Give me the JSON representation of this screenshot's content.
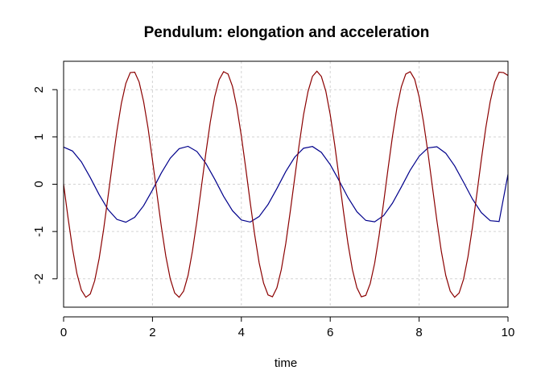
{
  "chart_data": {
    "type": "line",
    "title": "Pendulum: elongation and acceleration",
    "xlabel": "time",
    "ylabel": "",
    "xlim": [
      0,
      10
    ],
    "ylim": [
      -2.6,
      2.6
    ],
    "x_ticks": [
      0,
      2,
      4,
      6,
      8,
      10
    ],
    "y_ticks": [
      -2,
      -1,
      0,
      1,
      2
    ],
    "x_tick_labels": [
      "0",
      "2",
      "4",
      "6",
      "8",
      "10"
    ],
    "y_tick_labels": [
      "-2",
      "-1",
      "0",
      "1",
      "2"
    ],
    "grid": true,
    "legend": "none",
    "series": [
      {
        "color": "#00008b",
        "x": [
          0,
          0.2,
          0.4,
          0.6,
          0.8,
          1.0,
          1.2,
          1.4,
          1.6,
          1.8,
          2.0,
          2.2,
          2.4,
          2.6,
          2.8,
          3.0,
          3.2,
          3.4,
          3.6,
          3.8,
          4.0,
          4.2,
          4.4,
          4.6,
          4.8,
          5.0,
          5.2,
          5.4,
          5.6,
          5.8,
          6.0,
          6.2,
          6.4,
          6.6,
          6.8,
          7.0,
          7.2,
          7.4,
          7.6,
          7.8,
          8.0,
          8.2,
          8.4,
          8.6,
          8.8,
          9.0,
          9.2,
          9.4,
          9.6,
          9.8,
          10.0
        ],
        "values": [
          0.785,
          0.703,
          0.473,
          0.142,
          -0.22,
          -0.535,
          -0.744,
          -0.803,
          -0.699,
          -0.455,
          -0.122,
          0.24,
          0.55,
          0.751,
          0.802,
          0.692,
          0.443,
          0.107,
          -0.254,
          -0.56,
          -0.756,
          -0.8,
          -0.683,
          -0.429,
          -0.091,
          0.269,
          0.571,
          0.761,
          0.798,
          0.674,
          0.415,
          0.075,
          -0.283,
          -0.581,
          -0.765,
          -0.795,
          -0.665,
          -0.401,
          -0.059,
          0.298,
          0.591,
          0.768,
          0.792,
          0.655,
          0.387,
          0.043,
          -0.313,
          -0.6,
          -0.771,
          -0.788,
          0.21
        ]
      },
      {
        "color": "#8b0000",
        "x": [
          0,
          0.1,
          0.2,
          0.3,
          0.4,
          0.5,
          0.6,
          0.7,
          0.8,
          0.9,
          1.0,
          1.1,
          1.2,
          1.3,
          1.4,
          1.5,
          1.6,
          1.7,
          1.8,
          1.9,
          2.0,
          2.1,
          2.2,
          2.3,
          2.4,
          2.5,
          2.6,
          2.7,
          2.8,
          2.9,
          3.0,
          3.1,
          3.2,
          3.3,
          3.4,
          3.5,
          3.6,
          3.7,
          3.8,
          3.9,
          4.0,
          4.1,
          4.2,
          4.3,
          4.4,
          4.5,
          4.6,
          4.7,
          4.8,
          4.9,
          5.0,
          5.1,
          5.2,
          5.3,
          5.4,
          5.5,
          5.6,
          5.7,
          5.8,
          5.9,
          6.0,
          6.1,
          6.2,
          6.3,
          6.4,
          6.5,
          6.6,
          6.7,
          6.8,
          6.9,
          7.0,
          7.1,
          7.2,
          7.3,
          7.4,
          7.5,
          7.6,
          7.7,
          7.8,
          7.9,
          8.0,
          8.1,
          8.2,
          8.3,
          8.4,
          8.5,
          8.6,
          8.7,
          8.8,
          8.9,
          9.0,
          9.1,
          9.2,
          9.3,
          9.4,
          9.5,
          9.6,
          9.7,
          9.8,
          9.9,
          10.0
        ],
        "values": [
          0.0,
          -0.71,
          -1.36,
          -1.89,
          -2.24,
          -2.39,
          -2.32,
          -2.04,
          -1.57,
          -0.96,
          -0.26,
          0.45,
          1.13,
          1.71,
          2.13,
          2.36,
          2.37,
          2.16,
          1.75,
          1.19,
          0.51,
          -0.2,
          -0.9,
          -1.52,
          -2.0,
          -2.3,
          -2.39,
          -2.26,
          -1.93,
          -1.41,
          -0.77,
          -0.06,
          0.65,
          1.31,
          1.85,
          2.21,
          2.38,
          2.33,
          2.07,
          1.62,
          1.02,
          0.33,
          -0.39,
          -1.07,
          -1.66,
          -2.09,
          -2.34,
          -2.38,
          -2.19,
          -1.8,
          -1.25,
          -0.58,
          0.13,
          0.83,
          1.47,
          1.96,
          2.28,
          2.39,
          2.28,
          1.97,
          1.47,
          0.84,
          0.13,
          -0.59,
          -1.26,
          -1.81,
          -2.19,
          -2.38,
          -2.35,
          -2.1,
          -1.67,
          -1.08,
          -0.4,
          0.32,
          1.01,
          1.61,
          2.06,
          2.33,
          2.38,
          2.22,
          1.85,
          1.31,
          0.66,
          -0.06,
          -0.77,
          -1.42,
          -1.93,
          -2.26,
          -2.39,
          -2.3,
          -2.01,
          -1.53,
          -0.91,
          -0.2,
          0.52,
          1.19,
          1.75,
          2.16,
          2.37,
          2.36,
          2.3
        ]
      }
    ]
  }
}
